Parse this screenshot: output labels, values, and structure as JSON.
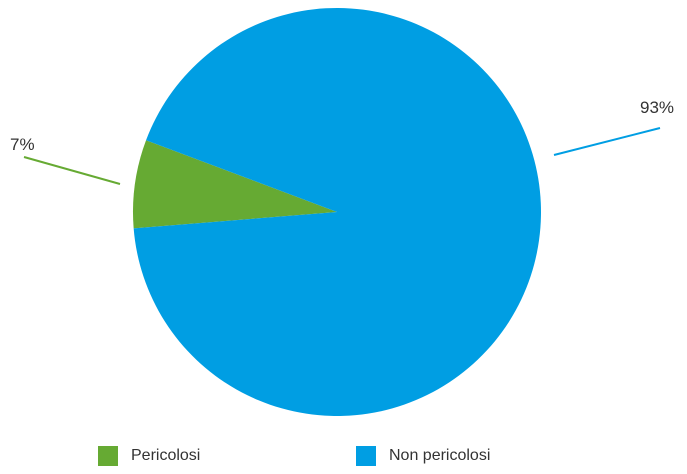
{
  "chart_data": {
    "type": "pie",
    "title": "",
    "slices": [
      {
        "name": "Pericolosi",
        "value": 7,
        "label": "7%",
        "color": "#66aa33"
      },
      {
        "name": "Non pericolosi",
        "value": 93,
        "label": "93%",
        "color": "#009ee3"
      }
    ],
    "legend_position": "bottom"
  }
}
